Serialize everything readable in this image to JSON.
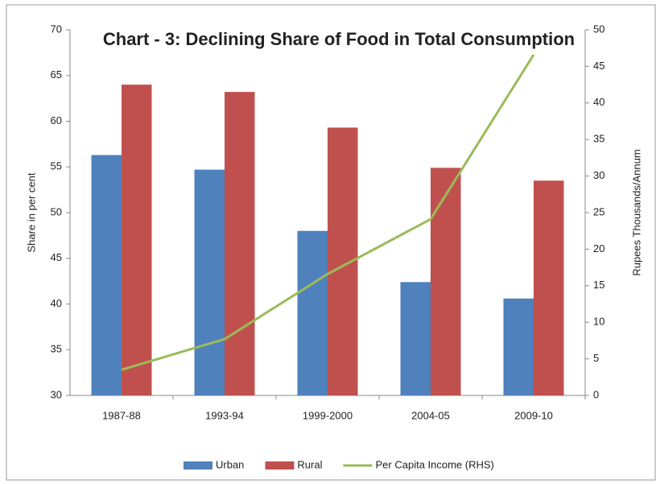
{
  "chart_data": {
    "type": "bar-line",
    "title": "Chart - 3: Declining Share of Food in Total Consumption",
    "y_label": "Share in per cent",
    "y2_label": "Rupees Thousands/Annum",
    "categories": [
      "1987-88",
      "1993-94",
      "1999-2000",
      "2004-05",
      "2009-10"
    ],
    "series": [
      {
        "name": "Urban",
        "type": "bar",
        "color": "#4f81bd",
        "values": [
          56.3,
          54.7,
          48.0,
          42.4,
          40.6
        ]
      },
      {
        "name": "Rural",
        "type": "bar",
        "color": "#c0504d",
        "values": [
          64.0,
          63.2,
          59.3,
          54.9,
          53.5
        ]
      },
      {
        "name": "Per Capita Income (RHS)",
        "type": "line",
        "axis": "y2",
        "color": "#9bbb59",
        "values": [
          3.5,
          7.7,
          16.6,
          24.1,
          46.6
        ]
      }
    ],
    "ylim": [
      30,
      70
    ],
    "yticks": [
      30,
      35,
      40,
      45,
      50,
      55,
      60,
      65,
      70
    ],
    "y2lim": [
      0,
      50
    ],
    "y2ticks": [
      0,
      5,
      10,
      15,
      20,
      25,
      30,
      35,
      40,
      45,
      50
    ],
    "legend": "bottom"
  }
}
